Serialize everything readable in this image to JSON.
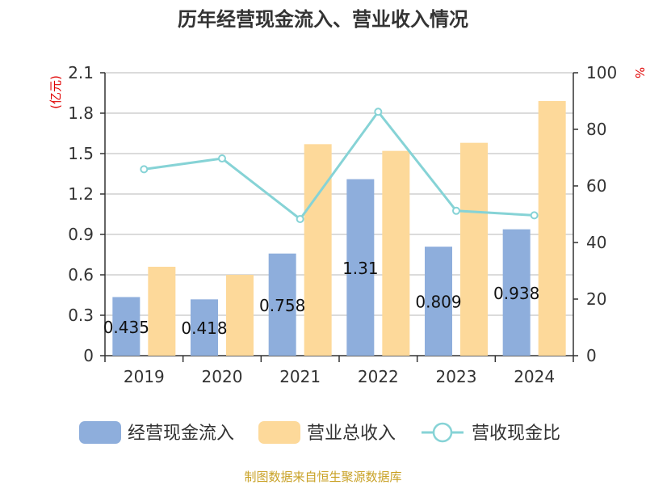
{
  "chart_data": {
    "type": "bar",
    "title": "历年经营现金流入、营业收入情况",
    "categories": [
      "2019",
      "2020",
      "2021",
      "2022",
      "2023",
      "2024"
    ],
    "series": [
      {
        "name": "经营现金流入",
        "type": "bar",
        "axis": "left",
        "color": "#8eaedc",
        "values": [
          0.435,
          0.418,
          0.758,
          1.31,
          0.809,
          0.938
        ],
        "labels": [
          "0.435",
          "0.418",
          "0.758",
          "1.31",
          "0.809",
          "0.938"
        ]
      },
      {
        "name": "营业总收入",
        "type": "bar",
        "axis": "left",
        "color": "#fdd99a",
        "values": [
          0.66,
          0.6,
          1.57,
          1.52,
          1.58,
          1.89
        ]
      },
      {
        "name": "营收现金比",
        "type": "line",
        "axis": "right",
        "color": "#86d3d6",
        "values": [
          65.9,
          69.7,
          48.3,
          86.2,
          51.2,
          49.6
        ]
      }
    ],
    "y_left": {
      "unit": "(亿元)",
      "min": 0,
      "max": 2.1,
      "ticks": [
        "0",
        "0.3",
        "0.6",
        "0.9",
        "1.2",
        "1.5",
        "1.8",
        "2.1"
      ]
    },
    "y_right": {
      "unit": "%",
      "min": 0,
      "max": 100,
      "ticks": [
        "0",
        "20",
        "40",
        "60",
        "80",
        "100"
      ]
    },
    "legend": "bottom",
    "grid": true
  },
  "source": "制图数据来自恒生聚源数据库"
}
